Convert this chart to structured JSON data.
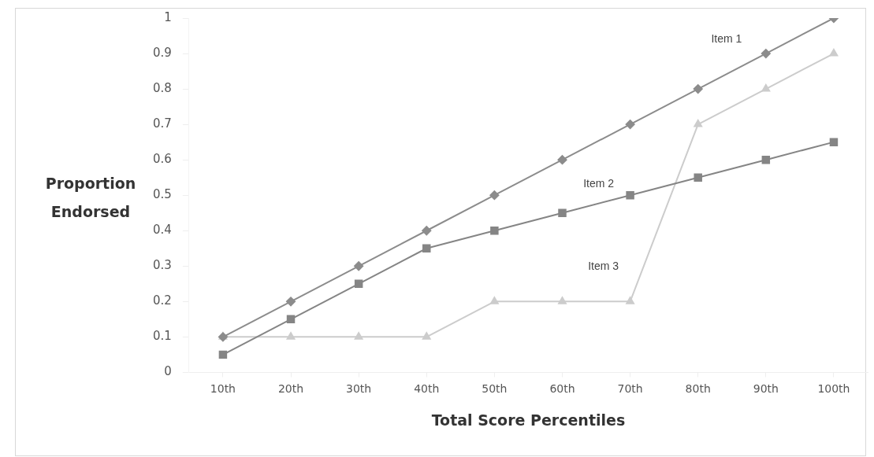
{
  "chart_data": {
    "type": "line",
    "xlabel": "Total Score Percentiles",
    "ylabel": "Proportion Endorsed",
    "categories": [
      "10th",
      "20th",
      "30th",
      "40th",
      "50th",
      "60th",
      "70th",
      "80th",
      "90th",
      "100th"
    ],
    "ylim": [
      0,
      1
    ],
    "yticks": [
      0,
      0.1,
      0.2,
      0.3,
      0.4,
      0.5,
      0.6,
      0.7,
      0.8,
      0.9,
      1
    ],
    "grid": false,
    "legend": false,
    "series": [
      {
        "name": "Item 1",
        "color": "#8c8c8c",
        "marker": "diamond",
        "values": [
          0.1,
          0.2,
          0.3,
          0.4,
          0.5,
          0.6,
          0.7,
          0.8,
          0.9,
          1
        ]
      },
      {
        "name": "Item 2",
        "color": "#858585",
        "marker": "square",
        "values": [
          0.05,
          0.15,
          0.25,
          0.35,
          0.4,
          0.45,
          0.5,
          0.55,
          0.6,
          0.65
        ]
      },
      {
        "name": "Item 3",
        "color": "#cccccc",
        "marker": "triangle",
        "values": [
          0.1,
          0.1,
          0.1,
          0.1,
          0.2,
          0.2,
          0.2,
          0.7,
          0.8,
          0.9
        ]
      }
    ]
  }
}
